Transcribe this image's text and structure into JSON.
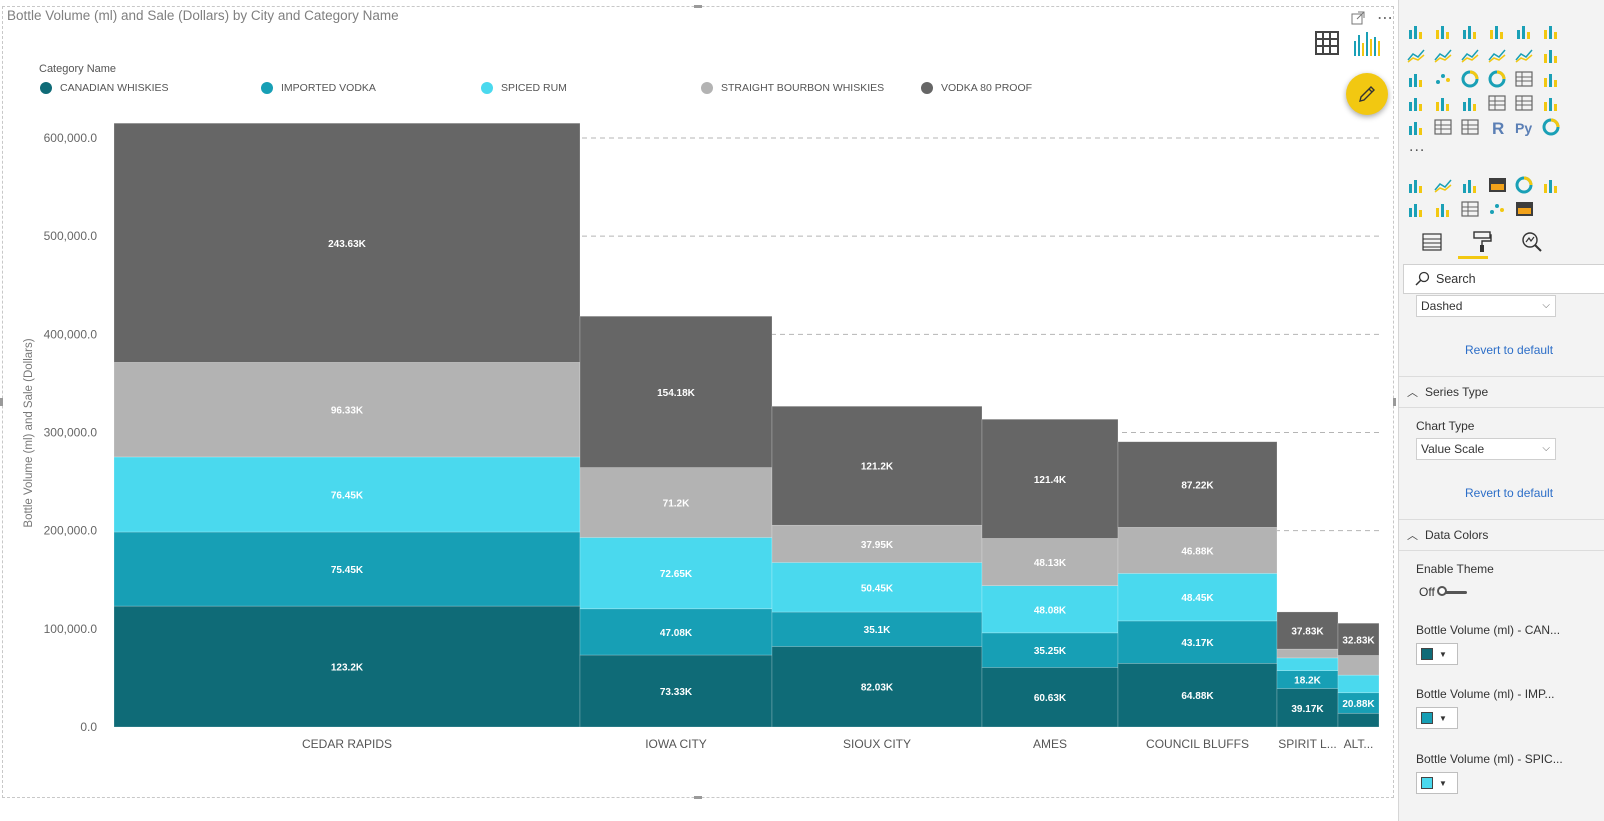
{
  "chart_title": "Bottle Volume (ml) and Sale (Dollars) by City and Category Name",
  "legend": {
    "title": "Category Name",
    "items": [
      {
        "label": "CANADIAN WHISKIES",
        "color": "#0f6b77"
      },
      {
        "label": "IMPORTED VODKA",
        "color": "#179fb5"
      },
      {
        "label": "SPICED RUM",
        "color": "#4ad9ee"
      },
      {
        "label": "STRAIGHT BOURBON WHISKIES",
        "color": "#b3b3b3"
      },
      {
        "label": "VODKA 80 PROOF",
        "color": "#666666"
      }
    ]
  },
  "chart_data": {
    "type": "bar",
    "subtype": "stacked-variable-width (marimekko)",
    "title": "Bottle Volume (ml) and Sale (Dollars) by City and Category Name",
    "ylabel": "Bottle Volume (ml) and Sale (Dollars)",
    "xlabel": "",
    "ylim": [
      0,
      600000
    ],
    "y_ticks": [
      "0.0",
      "100,000.0",
      "200,000.0",
      "300,000.0",
      "400,000.0",
      "500,000.0",
      "600,000.0"
    ],
    "grid": "dashed horizontal",
    "legend_position": "top",
    "categories": [
      "CEDAR RAPIDS",
      "IOWA CITY",
      "SIOUX CITY",
      "AMES",
      "COUNCIL BLUFFS",
      "SPIRIT L...",
      "ALT..."
    ],
    "widths": [
      466,
      192,
      210,
      136,
      159,
      61,
      41
    ],
    "series": [
      {
        "name": "CANADIAN WHISKIES",
        "values": [
          123200,
          73330,
          82030,
          60630,
          64880,
          39170,
          14000
        ],
        "labels": [
          "123.2K",
          "73.33K",
          "82.03K",
          "60.63K",
          "64.88K",
          "39.17K",
          ""
        ]
      },
      {
        "name": "IMPORTED VODKA",
        "values": [
          75450,
          47080,
          35100,
          35250,
          43170,
          18200,
          20880
        ],
        "labels": [
          "75.45K",
          "47.08K",
          "35.1K",
          "35.25K",
          "43.17K",
          "18.2K",
          "20.88K"
        ]
      },
      {
        "name": "SPICED RUM",
        "values": [
          76450,
          72650,
          50450,
          48080,
          48450,
          13000,
          18000
        ],
        "labels": [
          "76.45K",
          "72.65K",
          "50.45K",
          "48.08K",
          "48.45K",
          "",
          ""
        ]
      },
      {
        "name": "STRAIGHT BOURBON WHISKIES",
        "values": [
          96330,
          71200,
          37950,
          48130,
          46880,
          9000,
          20000
        ],
        "labels": [
          "96.33K",
          "71.2K",
          "37.95K",
          "48.13K",
          "46.88K",
          "",
          ""
        ]
      },
      {
        "name": "VODKA 80 PROOF",
        "values": [
          243630,
          154180,
          121200,
          121400,
          87220,
          37830,
          32830
        ],
        "labels": [
          "243.63K",
          "154.18K",
          "121.2K",
          "121.4K",
          "87.22K",
          "37.83K",
          "32.83K"
        ]
      }
    ]
  },
  "pane": {
    "search_placeholder": "Search",
    "line_style_value": "Dashed",
    "revert_1": "Revert to default",
    "section_series_type": "Series Type",
    "chart_type_label": "Chart Type",
    "chart_type_value": "Value Scale",
    "revert_2": "Revert to default",
    "section_data_colors": "Data Colors",
    "enable_theme_label": "Enable Theme",
    "enable_theme_value": "Off",
    "color_label_1": "Bottle Volume (ml) - CAN...",
    "color_label_2": "Bottle Volume (ml) - IMP...",
    "color_label_3": "Bottle Volume (ml) - SPIC...",
    "swatch_1": "#0f6b77",
    "swatch_2": "#179fb5",
    "swatch_3": "#4ad9ee",
    "more": "..."
  },
  "icons": [
    "expand-icon",
    "more-options-icon",
    "table-view-icon",
    "visual-icon",
    "edit-pencil-icon",
    "search-icon",
    "fields-tab-icon",
    "format-tab-icon",
    "analytics-tab-icon"
  ]
}
